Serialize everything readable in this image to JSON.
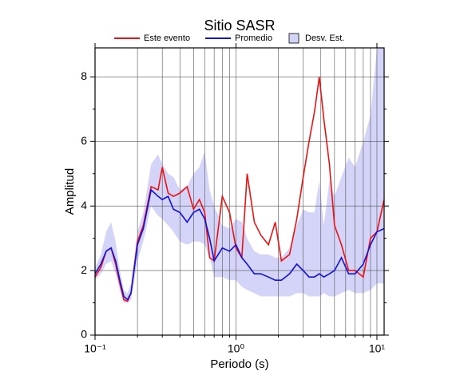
{
  "chart_data": {
    "type": "line",
    "title": "Sitio SASR",
    "x_label": "Periodo (s)",
    "y_label": "Amplitud",
    "log_x": true,
    "grid": true,
    "xlim": [
      0.1,
      11.25
    ],
    "ylim": [
      0,
      8.9
    ],
    "xticks": [
      {
        "value": 0.1,
        "label": "10⁻¹"
      },
      {
        "value": 1,
        "label": "10⁰"
      },
      {
        "value": 10,
        "label": "10¹"
      }
    ],
    "xminorticks": [
      0.2,
      0.3,
      0.4,
      0.5,
      0.6,
      0.7,
      0.8,
      0.9,
      2,
      3,
      4,
      5,
      6,
      7,
      8,
      9
    ],
    "yticks": [
      0,
      2,
      4,
      6,
      8
    ],
    "yminorticks": [
      1,
      3,
      5,
      7
    ],
    "x": [
      0.1,
      0.11,
      0.12,
      0.13,
      0.14,
      0.15,
      0.16,
      0.17,
      0.18,
      0.2,
      0.22,
      0.25,
      0.28,
      0.3,
      0.33,
      0.36,
      0.4,
      0.45,
      0.5,
      0.55,
      0.6,
      0.65,
      0.7,
      0.8,
      0.9,
      1.0,
      1.1,
      1.2,
      1.35,
      1.5,
      1.7,
      1.9,
      2.1,
      2.4,
      2.7,
      3.0,
      3.3,
      3.6,
      3.9,
      4.2,
      4.6,
      5.0,
      5.6,
      6.3,
      7.0,
      8.0,
      9.0,
      10.0,
      11.25
    ],
    "series": [
      {
        "name": "Este evento",
        "color": "#ee1111",
        "values": [
          1.8,
          2.1,
          2.6,
          2.7,
          2.2,
          1.6,
          1.1,
          1.05,
          1.3,
          2.9,
          3.4,
          4.6,
          4.5,
          5.2,
          4.4,
          4.3,
          4.4,
          4.6,
          3.9,
          4.2,
          3.8,
          2.4,
          2.3,
          4.3,
          3.8,
          2.7,
          2.4,
          5.0,
          3.5,
          3.1,
          2.8,
          3.5,
          2.3,
          2.5,
          3.6,
          4.9,
          6.0,
          6.9,
          8.0,
          6.7,
          5.3,
          3.4,
          2.8,
          2.0,
          2.0,
          1.8,
          3.0,
          3.2,
          4.2
        ]
      },
      {
        "name": "Promedio",
        "color": "#1111dd",
        "values": [
          1.9,
          2.2,
          2.6,
          2.7,
          2.3,
          1.7,
          1.2,
          1.1,
          1.3,
          2.8,
          3.3,
          4.5,
          4.3,
          4.2,
          4.3,
          3.9,
          3.8,
          3.5,
          3.8,
          3.9,
          3.6,
          3.0,
          2.3,
          2.7,
          2.6,
          2.8,
          2.4,
          2.2,
          1.9,
          1.9,
          1.8,
          1.7,
          1.7,
          1.9,
          2.2,
          2.0,
          1.8,
          1.8,
          1.9,
          1.8,
          1.9,
          2.0,
          2.4,
          1.9,
          1.9,
          2.2,
          2.8,
          3.2,
          3.3
        ]
      },
      {
        "name": "Desv. Est.",
        "color": "#d4d4f8",
        "low": [
          1.7,
          1.9,
          2.2,
          2.3,
          1.9,
          1.4,
          1.0,
          1.0,
          1.1,
          2.3,
          2.9,
          4.0,
          3.7,
          3.6,
          3.4,
          3.2,
          2.9,
          2.8,
          2.9,
          2.9,
          2.8,
          2.4,
          1.8,
          1.8,
          1.7,
          1.7,
          1.5,
          1.4,
          1.3,
          1.2,
          1.2,
          1.2,
          1.2,
          1.2,
          1.3,
          1.3,
          1.2,
          1.2,
          1.2,
          1.3,
          1.2,
          1.2,
          1.3,
          1.4,
          1.3,
          1.3,
          1.4,
          1.6,
          1.6
        ],
        "high": [
          2.1,
          2.5,
          3.2,
          3.5,
          2.9,
          2.0,
          1.4,
          1.3,
          1.6,
          3.2,
          3.8,
          5.3,
          5.6,
          5.3,
          5.0,
          4.9,
          4.5,
          4.6,
          5.0,
          5.2,
          5.7,
          4.5,
          4.0,
          3.4,
          3.3,
          3.6,
          3.5,
          3.0,
          2.6,
          2.5,
          2.5,
          2.4,
          2.4,
          2.7,
          3.4,
          3.9,
          3.8,
          3.8,
          4.8,
          3.4,
          4.8,
          4.3,
          4.9,
          5.5,
          5.2,
          6.0,
          6.8,
          8.9,
          8.9
        ]
      }
    ]
  }
}
